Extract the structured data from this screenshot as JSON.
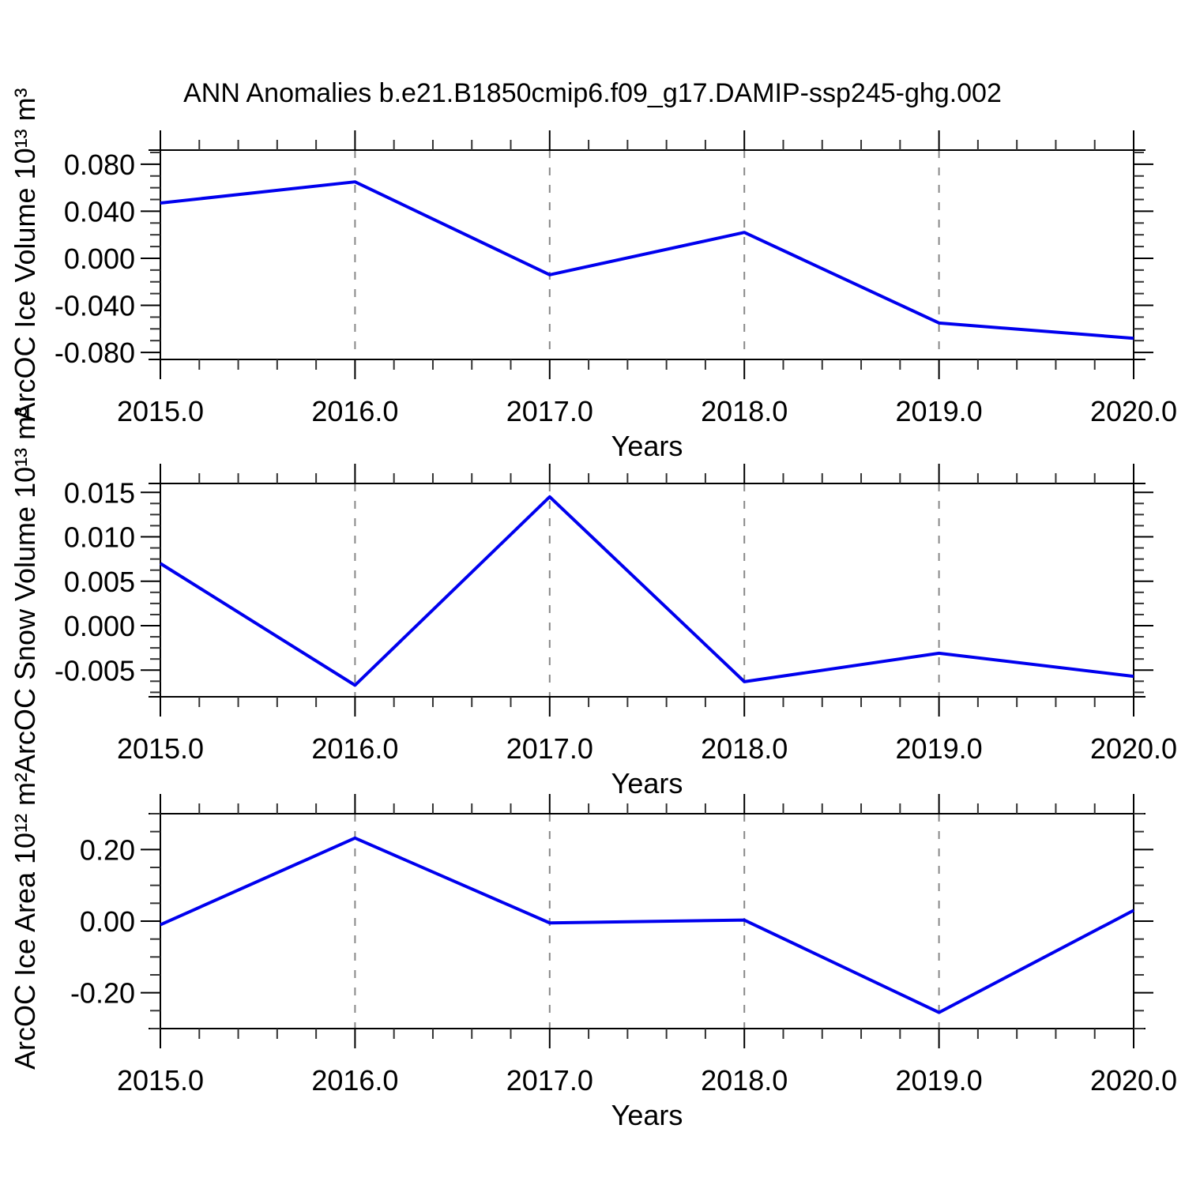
{
  "title": "ANN Anomalies b.e21.B1850cmip6.f09_g17.DAMIP-ssp245-ghg.002",
  "colors": {
    "line": "#0000ee",
    "axis": "#000000",
    "minor_tick": "#333333",
    "gridline": "#888888",
    "text": "#000000"
  },
  "chart_data": [
    {
      "type": "line",
      "ylabel": "ArcOC Ice Volume 10¹³ m³",
      "xlabel": "Years",
      "x": [
        2015.0,
        2016.0,
        2017.0,
        2018.0,
        2019.0,
        2020.0
      ],
      "values": [
        0.047,
        0.065,
        -0.014,
        0.022,
        -0.055,
        -0.068
      ],
      "xlim": [
        2015.0,
        2020.0
      ],
      "ylim": [
        -0.086,
        0.092
      ],
      "xticks": [
        2015.0,
        2016.0,
        2017.0,
        2018.0,
        2019.0,
        2020.0
      ],
      "xtick_labels": [
        "2015.0",
        "2016.0",
        "2017.0",
        "2018.0",
        "2019.0",
        "2020.0"
      ],
      "yticks": [
        0.08,
        0.04,
        0.0,
        -0.04,
        -0.08
      ],
      "ytick_labels": [
        "0.080",
        "0.040",
        "0.000",
        "-0.040",
        "-0.080"
      ],
      "x_minor_step": 0.2,
      "y_minor_step": 0.01,
      "gridline_x": [
        2016.0,
        2017.0,
        2018.0,
        2019.0
      ],
      "grid": "vertical-dashed-at-major-x",
      "legend": "none"
    },
    {
      "type": "line",
      "ylabel": "ArcOC Snow Volume 10¹³ m³",
      "xlabel": "Years",
      "x": [
        2015.0,
        2016.0,
        2017.0,
        2018.0,
        2019.0,
        2020.0
      ],
      "values": [
        0.007,
        -0.0067,
        0.0145,
        -0.0063,
        -0.0031,
        -0.0057
      ],
      "xlim": [
        2015.0,
        2020.0
      ],
      "ylim": [
        -0.008,
        0.016
      ],
      "xticks": [
        2015.0,
        2016.0,
        2017.0,
        2018.0,
        2019.0,
        2020.0
      ],
      "xtick_labels": [
        "2015.0",
        "2016.0",
        "2017.0",
        "2018.0",
        "2019.0",
        "2020.0"
      ],
      "yticks": [
        0.015,
        0.01,
        0.005,
        0.0,
        -0.005
      ],
      "ytick_labels": [
        "0.015",
        "0.010",
        "0.005",
        "0.000",
        "-0.005"
      ],
      "x_minor_step": 0.2,
      "y_minor_step": 0.00125,
      "gridline_x": [
        2016.0,
        2017.0,
        2018.0,
        2019.0
      ],
      "grid": "vertical-dashed-at-major-x",
      "legend": "none"
    },
    {
      "type": "line",
      "ylabel": "ArcOC Ice Area 10¹² m²",
      "xlabel": "Years",
      "x": [
        2015.0,
        2016.0,
        2017.0,
        2018.0,
        2019.0,
        2020.0
      ],
      "values": [
        -0.01,
        0.232,
        -0.005,
        0.003,
        -0.255,
        0.03
      ],
      "xlim": [
        2015.0,
        2020.0
      ],
      "ylim": [
        -0.3,
        0.3
      ],
      "xticks": [
        2015.0,
        2016.0,
        2017.0,
        2018.0,
        2019.0,
        2020.0
      ],
      "xtick_labels": [
        "2015.0",
        "2016.0",
        "2017.0",
        "2018.0",
        "2019.0",
        "2020.0"
      ],
      "yticks": [
        0.2,
        0.0,
        -0.2
      ],
      "ytick_labels": [
        "0.20",
        "0.00",
        "-0.20"
      ],
      "x_minor_step": 0.2,
      "y_minor_step": 0.05,
      "gridline_x": [
        2016.0,
        2017.0,
        2018.0,
        2019.0
      ],
      "grid": "vertical-dashed-at-major-x",
      "legend": "none"
    }
  ]
}
